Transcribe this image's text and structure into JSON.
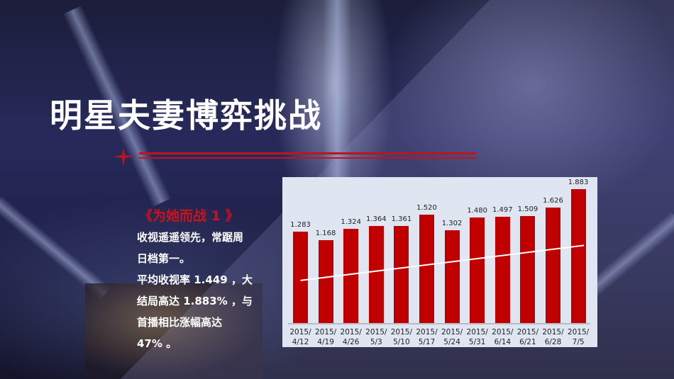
{
  "slide": {
    "title": "明星夫妻博弈挑战",
    "subtitle": "《为她而战 1 》",
    "body_lines": [
      "收视遥遥领先，常踞周",
      "日档第一。",
      "平均收视率 1.449 ，大",
      "结局高达 1.883% ，与",
      "首播相比涨幅高达",
      "47% 。"
    ],
    "accent_color": "#c3121b"
  },
  "chart_data": {
    "type": "bar",
    "title": "",
    "xlabel": "",
    "ylabel": "",
    "categories": [
      "2015/\n4/12",
      "2015/\n4/19",
      "2015/\n4/26",
      "2015/\n5/3",
      "2015/\n5/10",
      "2015/\n5/17",
      "2015/\n5/24",
      "2015/\n5/31",
      "2015/\n6/14",
      "2015/\n6/21",
      "2015/\n6/28",
      "2015/\n7/5"
    ],
    "category_lines": [
      [
        "2015/",
        "4/12"
      ],
      [
        "2015/",
        "4/19"
      ],
      [
        "2015/",
        "4/26"
      ],
      [
        "2015/",
        "5/3"
      ],
      [
        "2015/",
        "5/10"
      ],
      [
        "2015/",
        "5/17"
      ],
      [
        "2015/",
        "5/24"
      ],
      [
        "2015/",
        "5/31"
      ],
      [
        "2015/",
        "6/14"
      ],
      [
        "2015/",
        "6/21"
      ],
      [
        "2015/",
        "6/28"
      ],
      [
        "2015/",
        "7/5"
      ]
    ],
    "values": [
      1.283,
      1.168,
      1.324,
      1.364,
      1.361,
      1.52,
      1.302,
      1.48,
      1.497,
      1.509,
      1.626,
      1.883
    ],
    "value_labels": [
      "1.283",
      "1.168",
      "1.324",
      "1.364",
      "1.361",
      "1.520",
      "1.302",
      "1.480",
      "1.497",
      "1.509",
      "1.626",
      "1.883"
    ],
    "bar_color": "#c00000",
    "trendline": {
      "type": "linear",
      "color": "#ffffff"
    },
    "grid": false,
    "legend": "none",
    "ylim": [
      0,
      1.9
    ]
  }
}
